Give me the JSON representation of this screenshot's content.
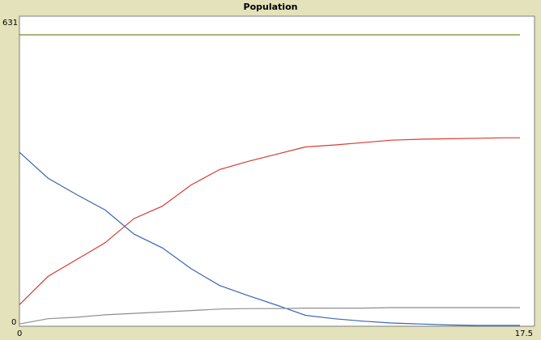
{
  "chart_data": {
    "type": "line",
    "title": "Population",
    "xlabel": "",
    "ylabel": "",
    "xlim": [
      0,
      17.5
    ],
    "ylim": [
      0,
      631
    ],
    "x_tick_labels": [
      "0",
      "17.5"
    ],
    "y_tick_labels": [
      "0",
      "631"
    ],
    "grid": false,
    "legend": "none",
    "series": [
      {
        "color": "#6b8e23",
        "x": [
          0,
          17.5
        ],
        "y": [
          604,
          604
        ]
      },
      {
        "color": "#d93a32",
        "x": [
          0,
          1,
          2,
          3,
          4,
          5,
          6,
          7,
          8,
          9,
          10,
          11,
          12,
          13,
          14,
          15,
          16,
          17,
          17.5
        ],
        "y": [
          43,
          102,
          137,
          172,
          222,
          248,
          292,
          324,
          341,
          356,
          371,
          375,
          380,
          385,
          387,
          388,
          389,
          390,
          390
        ]
      },
      {
        "color": "#3a67b1",
        "x": [
          0,
          1,
          2,
          3,
          4,
          5,
          6,
          7,
          8,
          9,
          10,
          11,
          12,
          13,
          14,
          15,
          16,
          17,
          17.5
        ],
        "y": [
          360,
          306,
          272,
          240,
          190,
          161,
          118,
          83,
          62,
          42,
          21,
          14,
          9,
          5,
          3,
          1,
          0,
          0,
          0
        ]
      },
      {
        "color": "#8e8e8e",
        "x": [
          0,
          1,
          2,
          3,
          4,
          5,
          6,
          7,
          8,
          9,
          10,
          11,
          12,
          13,
          14,
          15,
          16,
          17,
          17.5
        ],
        "y": [
          3,
          14,
          17,
          22,
          25,
          28,
          31,
          34,
          35,
          35,
          36,
          36,
          36,
          37,
          37,
          37,
          37,
          37,
          37
        ]
      }
    ]
  }
}
